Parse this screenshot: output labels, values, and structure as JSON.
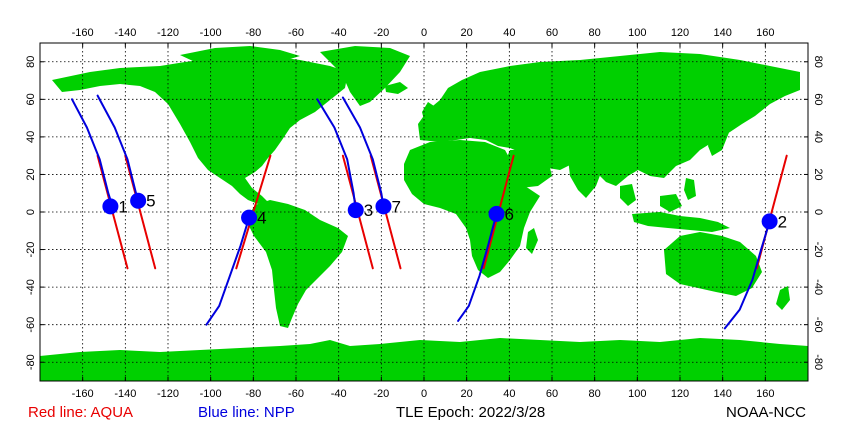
{
  "map": {
    "x_ticks": [
      "-160",
      "-140",
      "-120",
      "-100",
      "-80",
      "-60",
      "-40",
      "-20",
      "0",
      "20",
      "40",
      "60",
      "80",
      "100",
      "120",
      "140",
      "160"
    ],
    "y_ticks": [
      "80",
      "60",
      "40",
      "20",
      "0",
      "-20",
      "-40",
      "-60",
      "-80"
    ],
    "lon_range": [
      -180,
      180
    ],
    "lat_range": [
      -90,
      90
    ],
    "colors": {
      "land": "#00d000",
      "red_track": "#e80000",
      "blue_track": "#0000dd",
      "marker": "#0000ff"
    }
  },
  "satellites": [
    {
      "label": "1",
      "lon": -147,
      "lat": 3
    },
    {
      "label": "5",
      "lon": -134,
      "lat": 6
    },
    {
      "label": "4",
      "lon": -82,
      "lat": -3
    },
    {
      "label": "3",
      "lon": -32,
      "lat": 1
    },
    {
      "label": "7",
      "lon": -19,
      "lat": 3
    },
    {
      "label": "6",
      "lon": 34,
      "lat": -1
    },
    {
      "label": "2",
      "lon": 162,
      "lat": -5
    }
  ],
  "tracks": [
    {
      "color": "red",
      "points": [
        [
          -153,
          30
        ],
        [
          -146,
          0
        ],
        [
          -139,
          -30
        ]
      ]
    },
    {
      "color": "red",
      "points": [
        [
          -140,
          30
        ],
        [
          -133,
          0
        ],
        [
          -126,
          -30
        ]
      ]
    },
    {
      "color": "red",
      "points": [
        [
          -72,
          30
        ],
        [
          -80,
          0
        ],
        [
          -88,
          -30
        ]
      ]
    },
    {
      "color": "red",
      "points": [
        [
          -38,
          30
        ],
        [
          -31,
          0
        ],
        [
          -24,
          -30
        ]
      ]
    },
    {
      "color": "red",
      "points": [
        [
          -25,
          30
        ],
        [
          -18,
          0
        ],
        [
          -11,
          -30
        ]
      ]
    },
    {
      "color": "red",
      "points": [
        [
          42,
          30
        ],
        [
          35,
          0
        ],
        [
          28,
          -30
        ]
      ]
    },
    {
      "color": "red",
      "points": [
        [
          170,
          30
        ],
        [
          163,
          0
        ],
        [
          156,
          -30
        ]
      ]
    },
    {
      "color": "blue",
      "points": [
        [
          -165,
          60
        ],
        [
          -158,
          45
        ],
        [
          -152,
          28
        ],
        [
          -148,
          10
        ],
        [
          -146,
          3
        ]
      ]
    },
    {
      "color": "blue",
      "points": [
        [
          -153,
          62
        ],
        [
          -145,
          45
        ],
        [
          -139,
          28
        ],
        [
          -135,
          10
        ],
        [
          -134,
          6
        ]
      ]
    },
    {
      "color": "blue",
      "points": [
        [
          -82,
          -3
        ],
        [
          -86,
          -18
        ],
        [
          -91,
          -34
        ],
        [
          -96,
          -50
        ],
        [
          -102,
          -60
        ]
      ]
    },
    {
      "color": "blue",
      "points": [
        [
          -50,
          60
        ],
        [
          -42,
          45
        ],
        [
          -36,
          28
        ],
        [
          -33,
          10
        ],
        [
          -32,
          1
        ]
      ]
    },
    {
      "color": "blue",
      "points": [
        [
          -38,
          61
        ],
        [
          -30,
          45
        ],
        [
          -24,
          28
        ],
        [
          -20,
          10
        ],
        [
          -19,
          3
        ]
      ]
    },
    {
      "color": "blue",
      "points": [
        [
          34,
          -1
        ],
        [
          30,
          -18
        ],
        [
          26,
          -34
        ],
        [
          21,
          -50
        ],
        [
          16,
          -58
        ]
      ]
    },
    {
      "color": "blue",
      "points": [
        [
          162,
          -5
        ],
        [
          158,
          -20
        ],
        [
          154,
          -36
        ],
        [
          148,
          -52
        ],
        [
          141,
          -62
        ]
      ]
    }
  ],
  "footer": {
    "left": "Red line: AQUA",
    "middle": "Blue line: NPP",
    "epoch": "TLE Epoch: 2022/3/28",
    "credit": "NOAA-NCC"
  }
}
